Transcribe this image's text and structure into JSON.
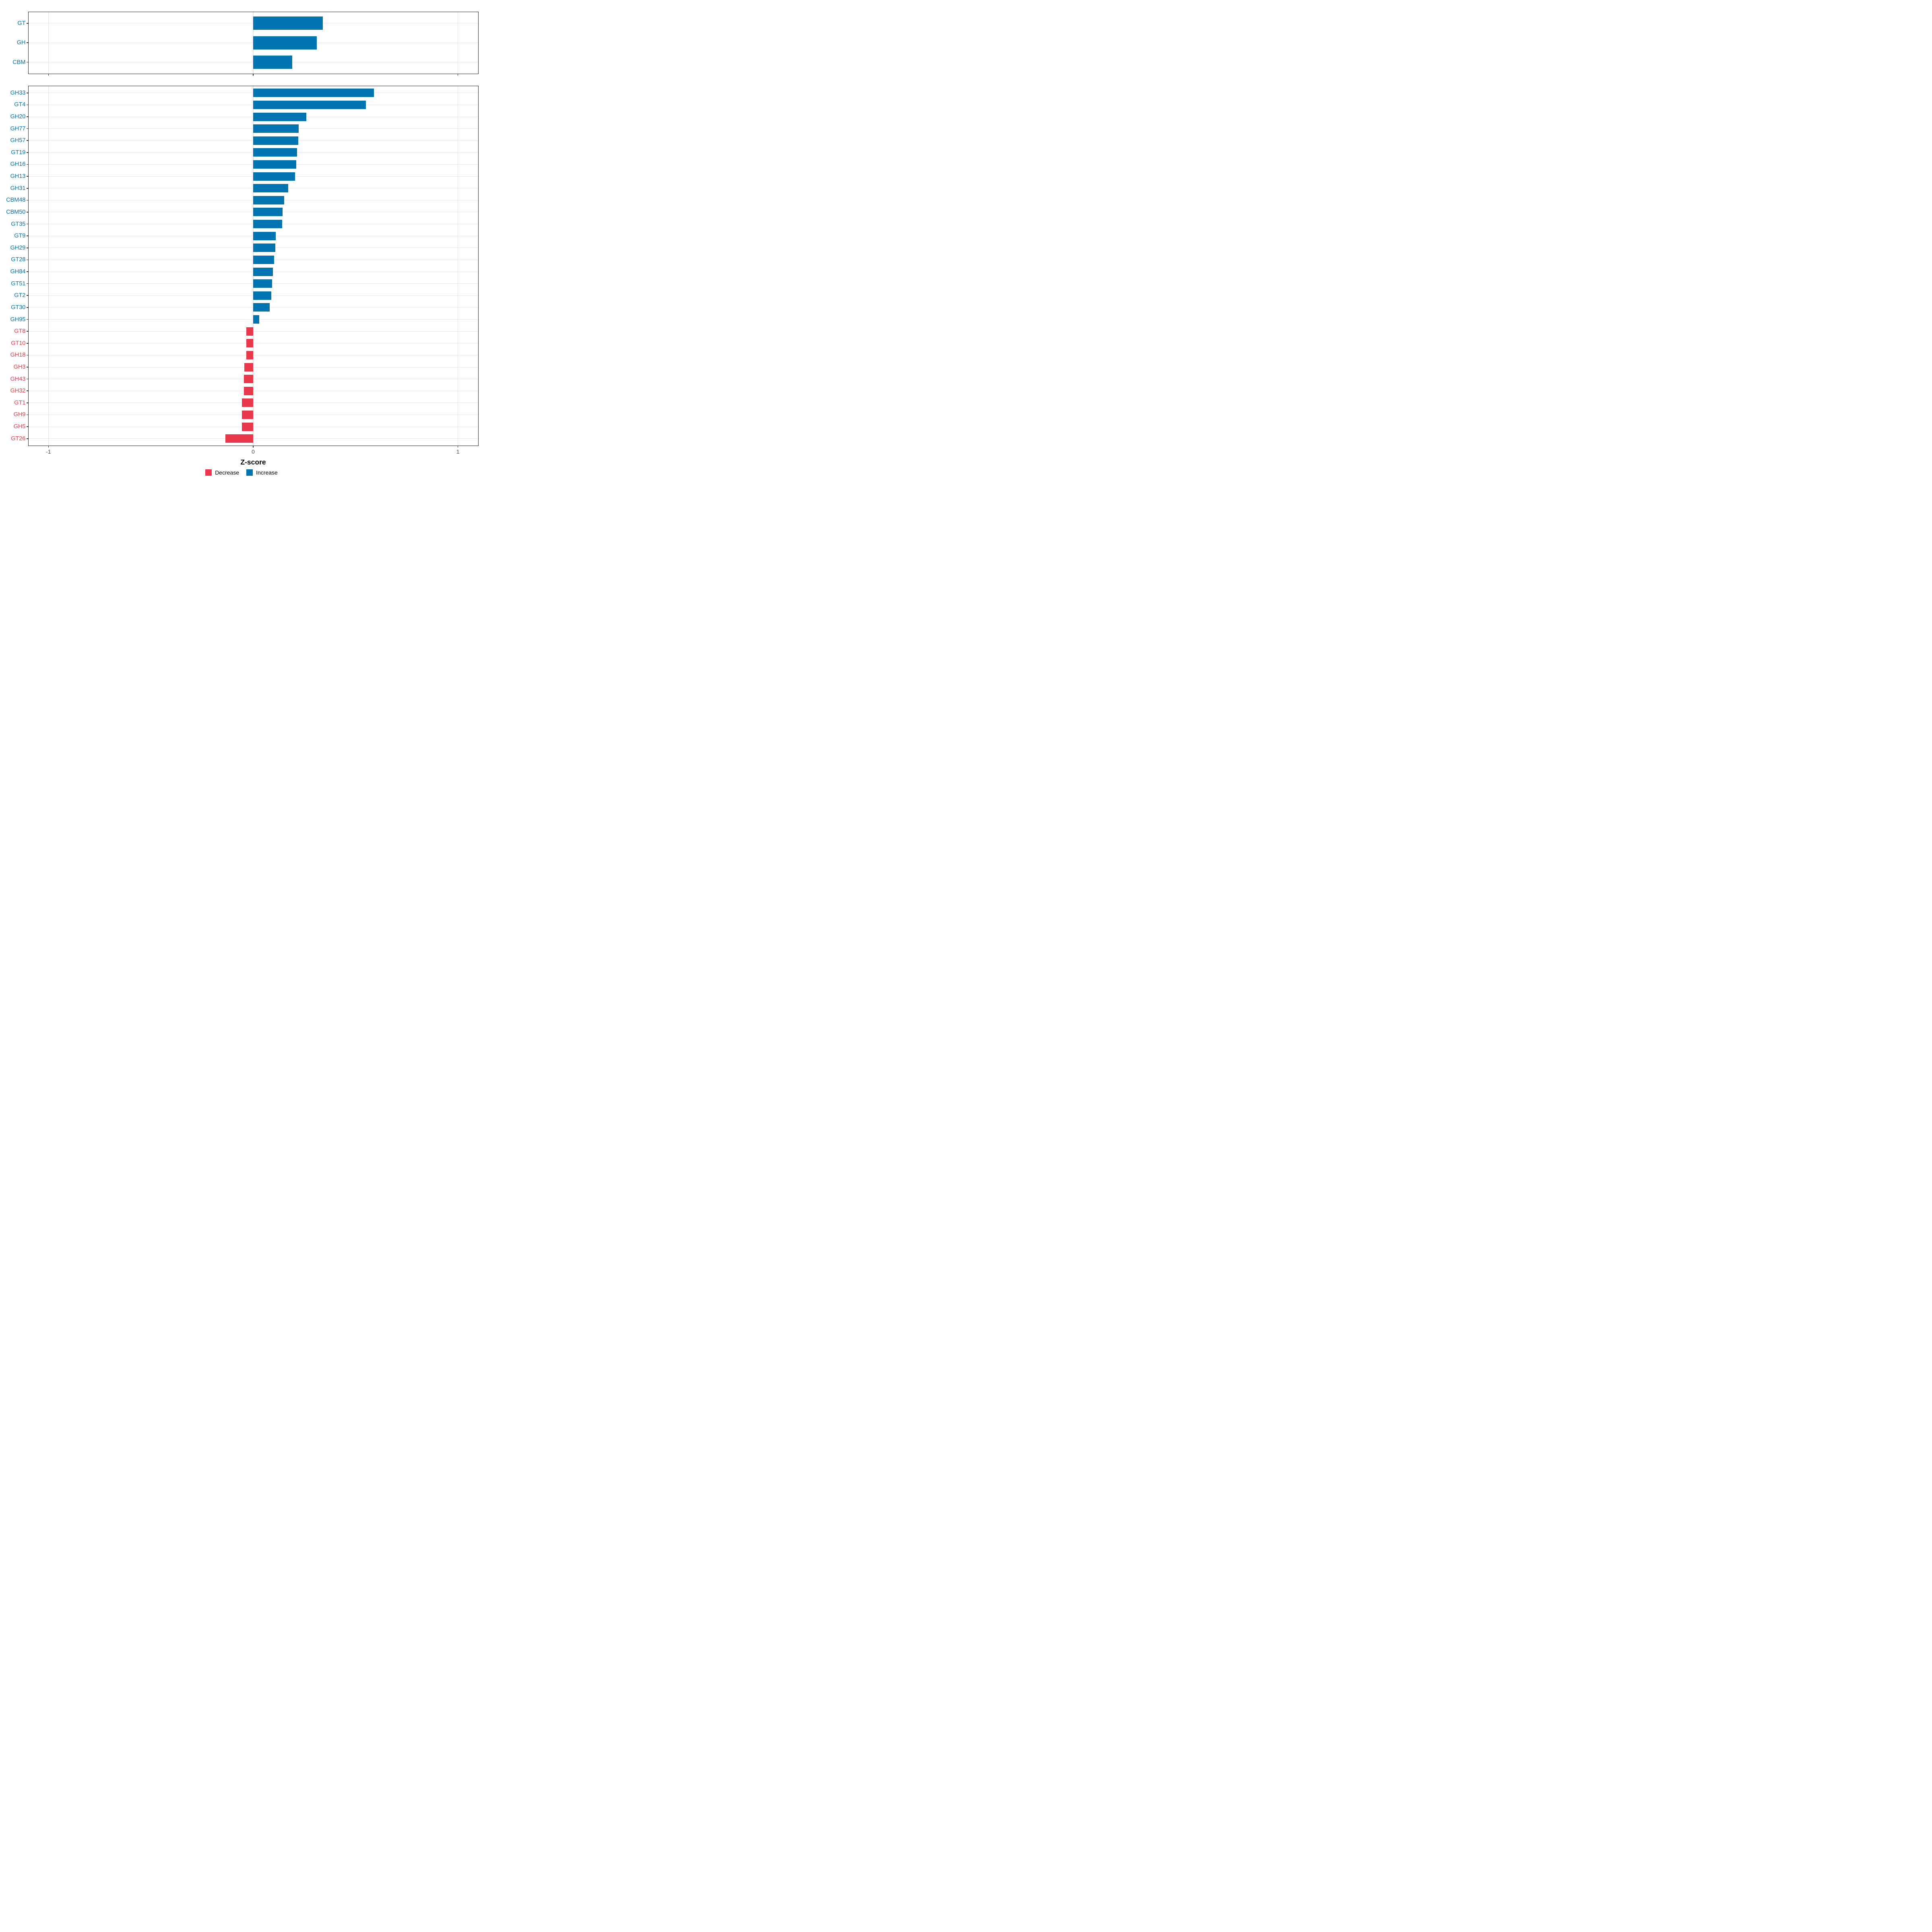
{
  "page": {
    "background": "#ffffff"
  },
  "colors": {
    "increase": "#0073B1",
    "decrease": "#E8384A",
    "gridline": "#E4E4E4",
    "panel_border": "#222222",
    "tick": "#333333",
    "tick_label": "#4D4D4D"
  },
  "axis": {
    "xlabel": "Z-score",
    "xtick_labels": [
      "-1",
      "0",
      "1"
    ]
  },
  "legend": {
    "items": [
      {
        "label": "Decrease",
        "color_key": "decrease"
      },
      {
        "label": "Increase",
        "color_key": "increase"
      }
    ]
  },
  "chart_data": {
    "type": "bar",
    "orientation": "horizontal",
    "xlabel": "Z-score",
    "xlim": [
      -1.1,
      1.1
    ],
    "xticks": [
      -1,
      0,
      1
    ],
    "grid": "major-only",
    "legend_position": "bottom",
    "series_meaning": "Z-score of CAZyme category abundance; positive = Increase (blue), negative = Decrease (red)",
    "panels": [
      {
        "name": "class-summary",
        "categories": [
          "GT",
          "GH",
          "CBM"
        ],
        "values": [
          0.34,
          0.31,
          0.19
        ]
      },
      {
        "name": "family-detail",
        "categories": [
          "GH33",
          "GT4",
          "GH20",
          "GH77",
          "GH57",
          "GT19",
          "GH16",
          "GH13",
          "GH31",
          "CBM48",
          "CBM50",
          "GT35",
          "GT9",
          "GH29",
          "GT28",
          "GH84",
          "GT51",
          "GT2",
          "GT30",
          "GH95",
          "GT8",
          "GT10",
          "GH18",
          "GH3",
          "GH43",
          "GH32",
          "GT1",
          "GH9",
          "GH5",
          "GT26"
        ],
        "values": [
          0.59,
          0.55,
          0.26,
          0.222,
          0.22,
          0.215,
          0.21,
          0.205,
          0.171,
          0.152,
          0.144,
          0.141,
          0.11,
          0.109,
          0.103,
          0.097,
          0.092,
          0.089,
          0.081,
          0.029,
          -0.033,
          -0.033,
          -0.034,
          -0.044,
          -0.046,
          -0.046,
          -0.056,
          -0.056,
          -0.056,
          -0.136
        ]
      }
    ]
  }
}
